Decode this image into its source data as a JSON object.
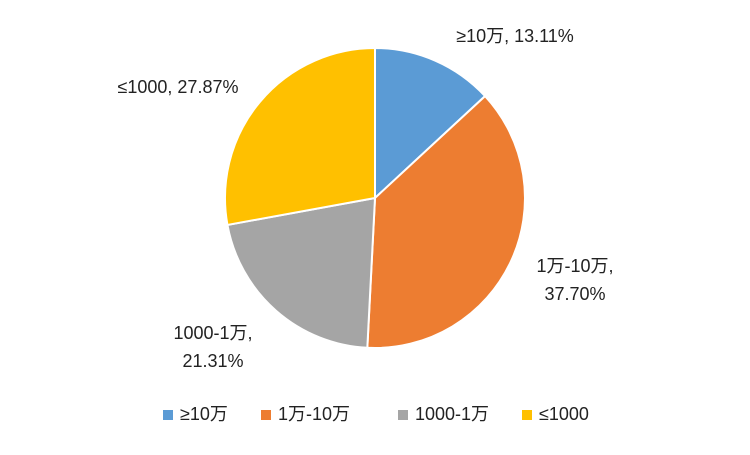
{
  "chart_data": {
    "type": "pie",
    "title": "",
    "slices": [
      {
        "label": "≥10万",
        "value": 13.11,
        "value_text": "13.11%",
        "color": "#5B9BD5"
      },
      {
        "label": "1万-10万",
        "value": 37.7,
        "value_text": "37.70%",
        "color": "#ED7D31"
      },
      {
        "label": "1000-1万",
        "value": 21.31,
        "value_text": "21.31%",
        "color": "#A5A5A5"
      },
      {
        "label": "≤1000",
        "value": 27.87,
        "value_text": "27.87%",
        "color": "#FFC000"
      }
    ],
    "legend": {
      "position": "bottom"
    },
    "start_angle": "12 o'clock",
    "direction": "clockwise"
  }
}
